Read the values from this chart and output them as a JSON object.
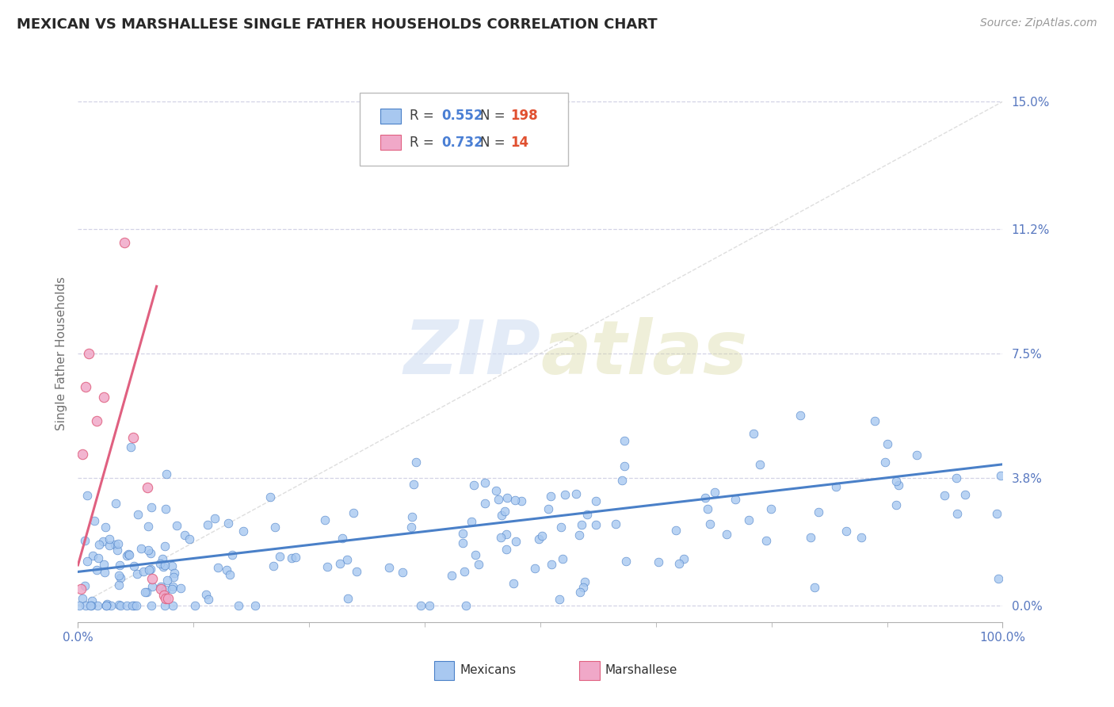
{
  "title": "MEXICAN VS MARSHALLESE SINGLE FATHER HOUSEHOLDS CORRELATION CHART",
  "source_text": "Source: ZipAtlas.com",
  "ylabel": "Single Father Households",
  "color_mexican": "#a8c8f0",
  "color_marshallese": "#f0a8c8",
  "color_line_mexican": "#4a80c8",
  "color_line_marshallese": "#e06080",
  "color_grid": "#c8c8e0",
  "color_axis_labels": "#5878c0",
  "color_title": "#282828",
  "ytick_labels": [
    "0.0%",
    "3.8%",
    "7.5%",
    "11.2%",
    "15.0%"
  ],
  "ytick_values": [
    0.0,
    3.8,
    7.5,
    11.2,
    15.0
  ],
  "xmin": 0.0,
  "xmax": 100.0,
  "ymin": -0.5,
  "ymax": 15.5,
  "watermark_zip": "ZIP",
  "watermark_atlas": "atlas",
  "r1": "0.552",
  "n1": "198",
  "r2": "0.732",
  "n2": "14"
}
